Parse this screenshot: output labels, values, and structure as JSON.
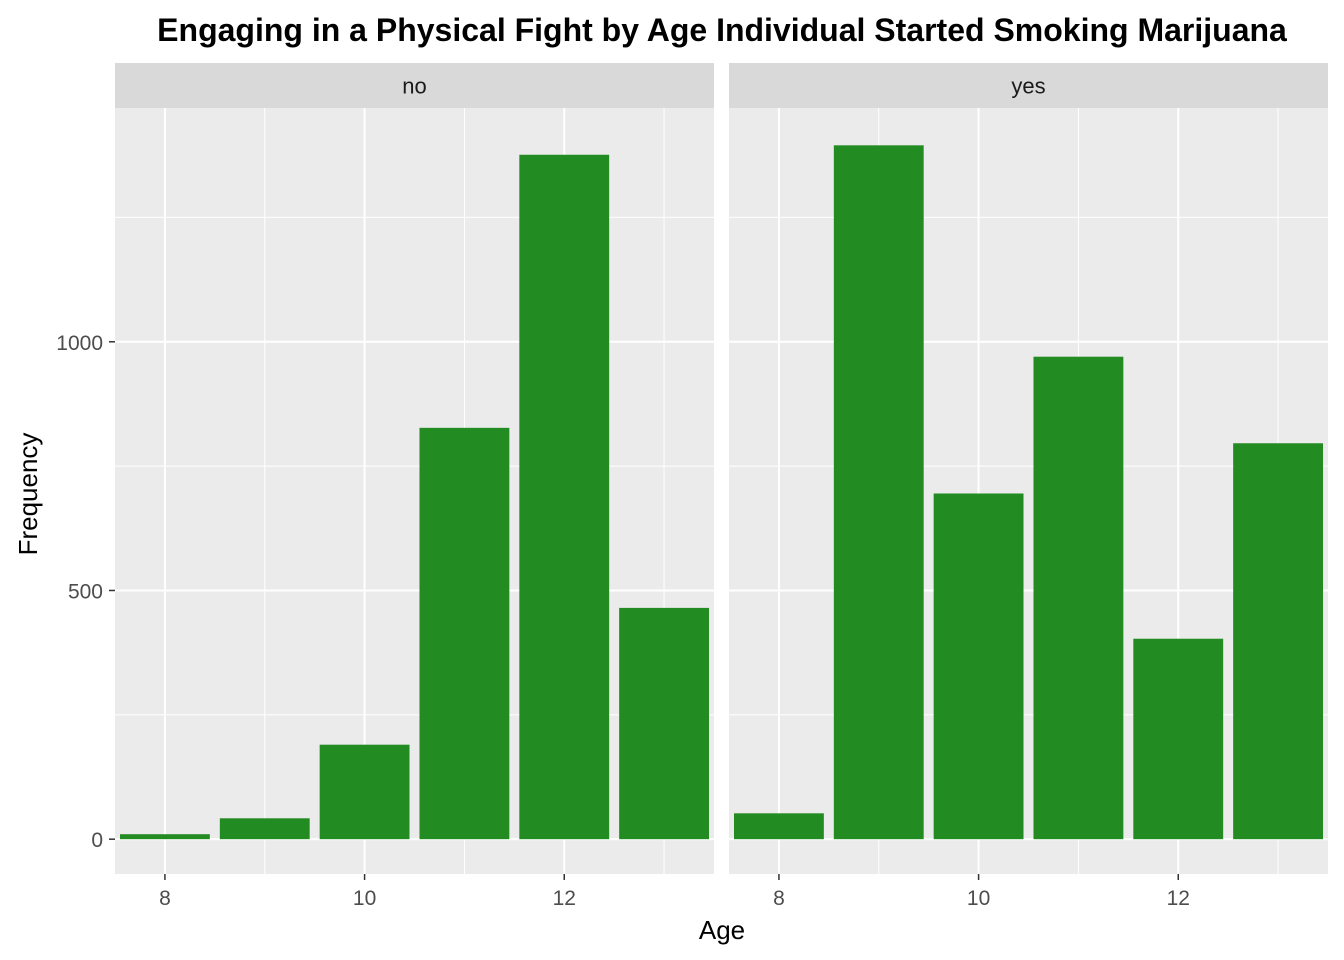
{
  "chart_data": {
    "type": "bar",
    "title": "Engaging in a Physical Fight by Age Individual Started Smoking Marijuana",
    "xlabel": "Age",
    "ylabel": "Frequency",
    "x": [
      8,
      9,
      10,
      11,
      12,
      13
    ],
    "x_ticks": [
      8,
      10,
      12
    ],
    "x_tick_labels": [
      "8",
      "10",
      "12"
    ],
    "xlim": [
      7.5,
      13.5
    ],
    "y_ticks": [
      0,
      500,
      1000
    ],
    "y_tick_labels": [
      "0",
      "500",
      "1000"
    ],
    "ylim": [
      -70,
      1470
    ],
    "bar_color": "#228B22",
    "panel_background": "#EBEBEB",
    "strip_background": "#D9D9D9",
    "grid": true,
    "legend": "none",
    "facets": [
      {
        "label": "no",
        "values": [
          10,
          42,
          190,
          827,
          1376,
          465
        ]
      },
      {
        "label": "yes",
        "values": [
          52,
          1395,
          695,
          970,
          403,
          796
        ]
      }
    ]
  }
}
